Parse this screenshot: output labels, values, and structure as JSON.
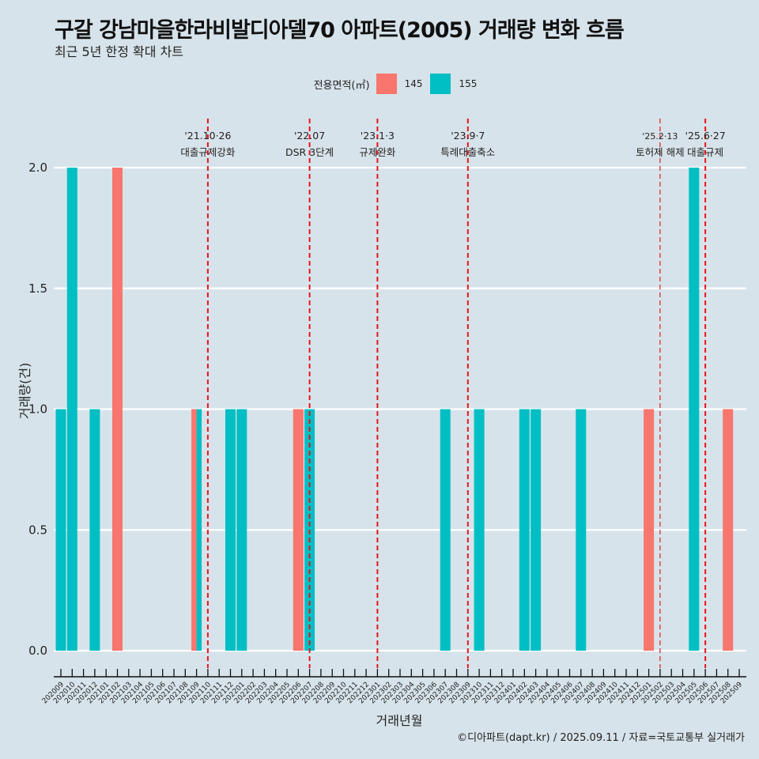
{
  "header": {
    "title": "구갈 강남마을한라비발디아델70 아파트(2005) 거래량 변화 흐름",
    "subtitle": "최근 5년 한정 확대 차트"
  },
  "legend": {
    "title": "전용면적(㎡)",
    "items": [
      {
        "label": "145",
        "color": "#F8766D"
      },
      {
        "label": "155",
        "color": "#00BFC4"
      }
    ]
  },
  "footer": {
    "caption": "©디아파트(dapt.kr) / 2025.09.11 / 자료=국토교통부 실거래가"
  },
  "chart_data": {
    "type": "bar",
    "title": "구갈 강남마을한라비발디아델70 아파트(2005) 거래량 변화 흐름",
    "subtitle": "최근 5년 한정 확대 차트",
    "xlabel": "거래년월",
    "ylabel": "거래량(건)",
    "ylim": [
      0,
      2
    ],
    "yticks": [
      "0.0",
      "0.5",
      "1.0",
      "1.5",
      "2.0"
    ],
    "ytick_values": [
      0,
      0.5,
      1.0,
      1.5,
      2.0
    ],
    "grid": true,
    "legend_position": "top",
    "categories": [
      "202009",
      "202010",
      "202011",
      "202012",
      "202101",
      "202102",
      "202103",
      "202104",
      "202105",
      "202106",
      "202107",
      "202108",
      "202109",
      "202110",
      "202111",
      "202112",
      "202201",
      "202202",
      "202203",
      "202204",
      "202205",
      "202206",
      "202207",
      "202208",
      "202209",
      "202210",
      "202211",
      "202212",
      "202301",
      "202302",
      "202303",
      "202304",
      "202305",
      "202306",
      "202307",
      "202308",
      "202309",
      "202310",
      "202311",
      "202312",
      "202401",
      "202402",
      "202403",
      "202404",
      "202405",
      "202406",
      "202407",
      "202408",
      "202409",
      "202410",
      "202411",
      "202412",
      "202501",
      "202502",
      "202503",
      "202504",
      "202505",
      "202506",
      "202507",
      "202508",
      "202509"
    ],
    "series": [
      {
        "name": "145",
        "color": "#F8766D",
        "points": [
          {
            "x": "202102",
            "y": 2
          },
          {
            "x": "202109",
            "y": 1
          },
          {
            "x": "202206",
            "y": 1
          },
          {
            "x": "202501",
            "y": 1
          },
          {
            "x": "202508",
            "y": 1
          }
        ]
      },
      {
        "name": "155",
        "color": "#00BFC4",
        "points": [
          {
            "x": "202009",
            "y": 1
          },
          {
            "x": "202010",
            "y": 2
          },
          {
            "x": "202012",
            "y": 1
          },
          {
            "x": "202109",
            "y": 1
          },
          {
            "x": "202112",
            "y": 1
          },
          {
            "x": "202201",
            "y": 1
          },
          {
            "x": "202207",
            "y": 1
          },
          {
            "x": "202307",
            "y": 1
          },
          {
            "x": "202310",
            "y": 1
          },
          {
            "x": "202402",
            "y": 1
          },
          {
            "x": "202403",
            "y": 1
          },
          {
            "x": "202407",
            "y": 1
          },
          {
            "x": "202505",
            "y": 2
          }
        ]
      }
    ],
    "annotations": [
      {
        "x": "202110",
        "date": "'21.10·26",
        "label": "대출규제강화",
        "style": "dashed"
      },
      {
        "x": "202207",
        "date": "'22.07",
        "label": "DSR 3단계",
        "style": "dashed"
      },
      {
        "x": "202301",
        "date": "'23.1·3",
        "label": "규제완화",
        "style": "dashed"
      },
      {
        "x": "202309",
        "date": "'23.9·7",
        "label": "특례대출축소",
        "style": "dashed"
      },
      {
        "x": "202502",
        "date": "'25.2·13",
        "label": "토허제 해제",
        "style": "thin-dashed"
      },
      {
        "x": "202506",
        "date": "'25.6·27",
        "label": "대출규제",
        "style": "dashed"
      }
    ]
  }
}
